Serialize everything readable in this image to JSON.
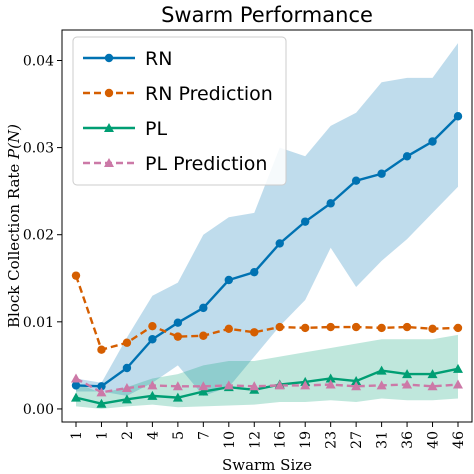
{
  "chart_data": {
    "type": "line",
    "title": "Swarm Performance",
    "xlabel": "Swarm Size",
    "ylabel": "Block Collection Rate P(N)",
    "categories": [
      "1",
      "1",
      "2",
      "4",
      "5",
      "7",
      "10",
      "12",
      "16",
      "19",
      "23",
      "27",
      "31",
      "36",
      "40",
      "46"
    ],
    "ylim": [
      -0.0015,
      0.0435
    ],
    "yticks": [
      "0.00",
      "0.01",
      "0.02",
      "0.03",
      "0.04"
    ],
    "ytick_values": [
      0.0,
      0.01,
      0.02,
      0.03,
      0.04
    ],
    "grid": false,
    "legend_position": "top-left",
    "series": [
      {
        "name": "RN",
        "color": "#0072b2",
        "marker": "circle",
        "linestyle": "solid",
        "values": [
          0.0027,
          0.0026,
          0.0047,
          0.008,
          0.0099,
          0.0116,
          0.0148,
          0.0157,
          0.019,
          0.0215,
          0.0236,
          0.0262,
          0.027,
          0.029,
          0.0307,
          0.0336
        ],
        "band_low": [
          0.002,
          0.002,
          0.0015,
          0.003,
          0.005,
          0.0015,
          0.0025,
          0.006,
          0.0095,
          0.0125,
          0.0185,
          0.014,
          0.017,
          0.0195,
          0.0225,
          0.0255
        ],
        "band_high": [
          0.0035,
          0.003,
          0.0082,
          0.013,
          0.0145,
          0.02,
          0.022,
          0.0225,
          0.03,
          0.029,
          0.0325,
          0.034,
          0.0375,
          0.038,
          0.038,
          0.042
        ],
        "band_color": "#0072b2"
      },
      {
        "name": "RN Prediction",
        "color": "#d55e00",
        "marker": "circle",
        "linestyle": "dashed",
        "values": [
          0.0153,
          0.0068,
          0.0076,
          0.0095,
          0.0083,
          0.0084,
          0.0092,
          0.0088,
          0.0094,
          0.0093,
          0.0094,
          0.0094,
          0.0093,
          0.0094,
          0.0092,
          0.0093
        ]
      },
      {
        "name": "PL",
        "color": "#009e73",
        "marker": "triangle",
        "linestyle": "solid",
        "values": [
          0.0013,
          0.0006,
          0.0011,
          0.0015,
          0.0013,
          0.002,
          0.0025,
          0.0022,
          0.0028,
          0.0031,
          0.0035,
          0.0032,
          0.0044,
          0.004,
          0.004,
          0.0046
        ],
        "band_low": [
          0.0003,
          0.0,
          0.0003,
          0.0005,
          0.0002,
          0.0003,
          0.0004,
          0.0005,
          0.0008,
          0.0008,
          0.001,
          0.0008,
          0.0012,
          0.001,
          0.001,
          0.0012
        ],
        "band_high": [
          0.003,
          0.0018,
          0.0025,
          0.0035,
          0.004,
          0.005,
          0.0055,
          0.0055,
          0.006,
          0.0065,
          0.007,
          0.0075,
          0.008,
          0.008,
          0.008,
          0.0085
        ],
        "band_color": "#009e73"
      },
      {
        "name": "PL Prediction",
        "color": "#cc79a7",
        "marker": "triangle",
        "linestyle": "dashed",
        "values": [
          0.0035,
          0.0019,
          0.0024,
          0.0027,
          0.0026,
          0.0026,
          0.0027,
          0.0026,
          0.0027,
          0.0027,
          0.0028,
          0.0026,
          0.0027,
          0.0028,
          0.0026,
          0.0028
        ]
      }
    ]
  }
}
